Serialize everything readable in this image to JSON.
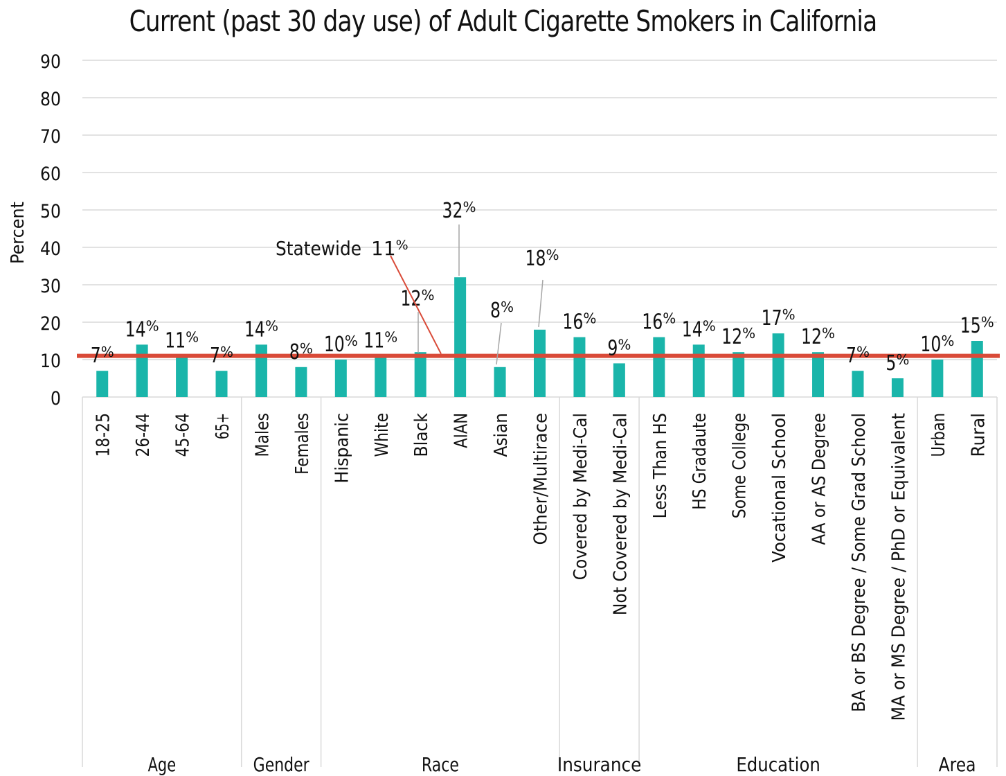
{
  "chart_data": {
    "type": "bar",
    "title": "Current (past 30 day use) of Adult Cigarette Smokers in California",
    "ylabel": "Percent",
    "xlabel": "",
    "ylim": [
      0,
      90
    ],
    "yticks": [
      0,
      10,
      20,
      30,
      40,
      50,
      60,
      70,
      80,
      90
    ],
    "grid": true,
    "categories": [
      "18-25",
      "26-44",
      "45-64",
      "65+",
      "Males",
      "Females",
      "Hispanic",
      "White",
      "Black",
      "AIAN",
      "Asian",
      "Other/Multirace",
      "Covered by Medi-Cal",
      "Not Covered by Medi-Cal",
      "Less Than HS",
      "HS Gradaute",
      "Some College",
      "Vocational School",
      "AA or AS Degree",
      "BA or BS Degree / Some Grad School",
      "MA or MS Degree / PhD or Equivalent",
      "Urban",
      "Rural"
    ],
    "values": [
      7,
      14,
      11,
      7,
      14,
      8,
      10,
      11,
      12,
      32,
      8,
      18,
      16,
      9,
      16,
      14,
      12,
      17,
      12,
      7,
      5,
      10,
      15
    ],
    "data_labels": [
      "7",
      "14",
      "11",
      "7",
      "14",
      "8",
      "10",
      "11",
      "12",
      "32",
      "8",
      "18",
      "16",
      "9",
      "16",
      "14",
      "12",
      "17",
      "12",
      "7",
      "5",
      "10",
      "15"
    ],
    "data_label_unit": "%",
    "groups": [
      {
        "name": "Age",
        "start": 0,
        "end": 3
      },
      {
        "name": "Gender",
        "start": 4,
        "end": 5
      },
      {
        "name": "Race",
        "start": 6,
        "end": 11
      },
      {
        "name": "Insurance",
        "start": 12,
        "end": 13
      },
      {
        "name": "Education",
        "start": 14,
        "end": 20
      },
      {
        "name": "Area",
        "start": 21,
        "end": 22
      }
    ],
    "reference_line": {
      "label": "Statewide",
      "value": 11,
      "value_label": "11",
      "unit": "%",
      "color": "#d94a38"
    },
    "bar_color": "#1ab5aa",
    "gridline_color": "#d9d9d9"
  }
}
